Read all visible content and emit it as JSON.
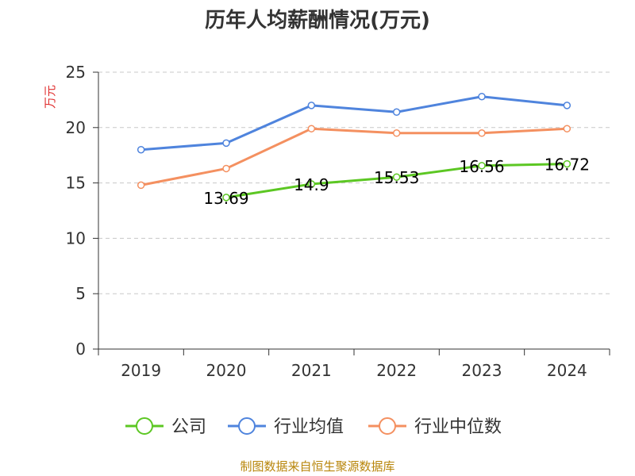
{
  "chart_data": {
    "type": "line",
    "title": "历年人均薪酬情况(万元)",
    "ylabel": "万元",
    "ylim": [
      0,
      25
    ],
    "yticks": [
      0,
      5,
      10,
      15,
      20,
      25
    ],
    "categories": [
      "2019",
      "2020",
      "2021",
      "2022",
      "2023",
      "2024"
    ],
    "grid": true,
    "legend_position": "bottom",
    "series": [
      {
        "name": "公司",
        "color": "#5cc723",
        "values": [
          null,
          13.69,
          14.9,
          15.53,
          16.56,
          16.72
        ],
        "labels": [
          "",
          "13.69",
          "14.9",
          "15.53",
          "16.56",
          "16.72"
        ]
      },
      {
        "name": "行业均值",
        "color": "#4f84dd",
        "values": [
          18.0,
          18.6,
          22.0,
          21.4,
          22.8,
          22.0
        ]
      },
      {
        "name": "行业中位数",
        "color": "#f49060",
        "values": [
          14.8,
          16.3,
          19.9,
          19.5,
          19.5,
          19.9
        ]
      }
    ],
    "source": "制图数据来自恒生聚源数据库",
    "colors": {
      "ylabel": "#e03030",
      "source": "#b8860b",
      "grid": "#c8c8c8",
      "axis": "#333333"
    }
  }
}
